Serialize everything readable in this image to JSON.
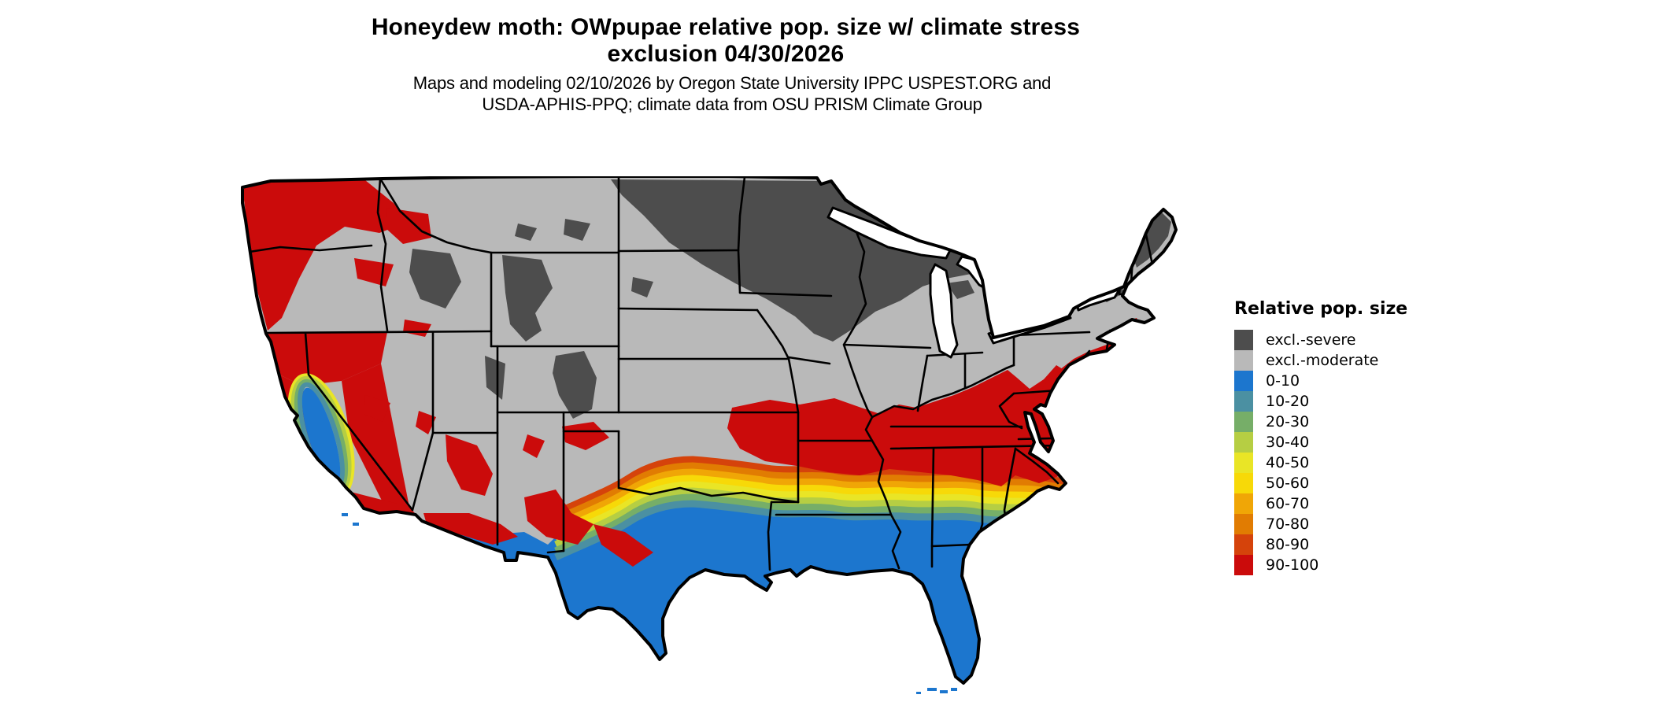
{
  "title": {
    "line1": "Honeydew moth: OWpupae relative pop. size w/ climate stress",
    "line2": "exclusion 04/30/2026"
  },
  "subtitle": {
    "line1": "Maps and modeling 02/10/2026 by Oregon State University IPPC USPEST.ORG and",
    "line2": "USDA-APHIS-PPQ; climate data from OSU PRISM Climate Group"
  },
  "legend": {
    "title": "Relative pop. size",
    "items": [
      {
        "label": "excl.-severe",
        "color": "#4D4D4D",
        "key": "severe"
      },
      {
        "label": "excl.-moderate",
        "color": "#B9B9B9",
        "key": "moderate"
      },
      {
        "label": "0-10",
        "color": "#1C76CE",
        "key": "c0_10"
      },
      {
        "label": "10-20",
        "color": "#4B90A2",
        "key": "c10_20"
      },
      {
        "label": "20-30",
        "color": "#76AE68",
        "key": "c20_30"
      },
      {
        "label": "30-40",
        "color": "#B6CE43",
        "key": "c30_40"
      },
      {
        "label": "40-50",
        "color": "#E9E526",
        "key": "c40_50"
      },
      {
        "label": "50-60",
        "color": "#F7D908",
        "key": "c50_60"
      },
      {
        "label": "60-70",
        "color": "#F0A606",
        "key": "c60_70"
      },
      {
        "label": "70-80",
        "color": "#E17C02",
        "key": "c70_80"
      },
      {
        "label": "80-90",
        "color": "#D5430B",
        "key": "c80_90"
      },
      {
        "label": "90-100",
        "color": "#CB0B0B",
        "key": "c90_100"
      }
    ]
  },
  "map": {
    "region": "Contiguous United States",
    "border_color": "#000000",
    "water_color": "#FFFFFF",
    "palette": {
      "severe": "#4D4D4D",
      "moderate": "#B9B9B9",
      "c0_10": "#1C76CE",
      "c10_20": "#4B90A2",
      "c20_30": "#76AE68",
      "c30_40": "#B6CE43",
      "c40_50": "#E9E526",
      "c50_60": "#F7D908",
      "c60_70": "#F0A606",
      "c70_80": "#E17C02",
      "c80_90": "#D5430B",
      "c90_100": "#CB0B0B"
    }
  }
}
